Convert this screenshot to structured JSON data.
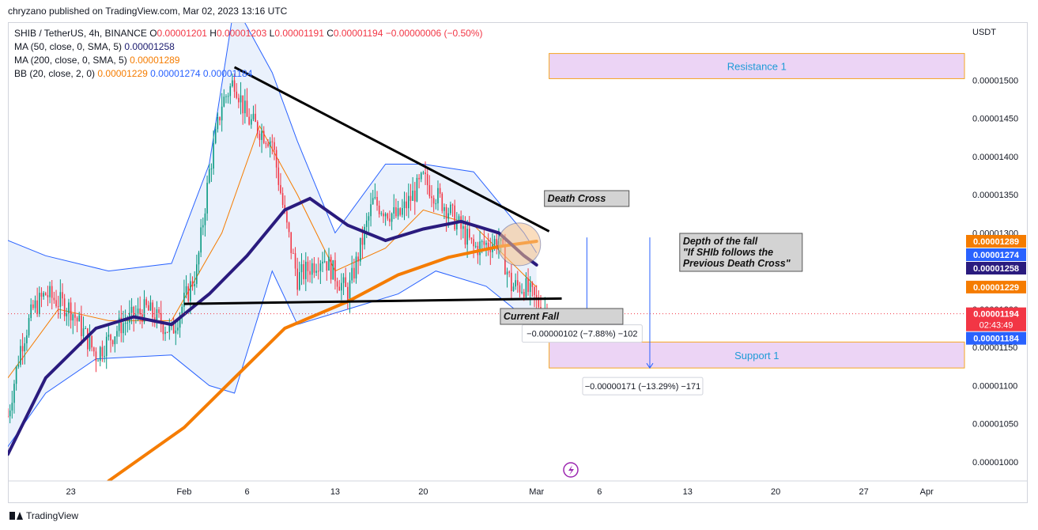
{
  "header": {
    "published": "chryzano published on TradingView.com, Mar 02, 2023 13:16 UTC"
  },
  "legend": {
    "symbol": "SHIB / TetherUS, 4h, BINANCE",
    "ohlc": [
      {
        "k": "O",
        "v": "0.00001201"
      },
      {
        "k": "H",
        "v": "0.00001203"
      },
      {
        "k": "L",
        "v": "0.00001191"
      },
      {
        "k": "C",
        "v": "0.00001194"
      }
    ],
    "change": "−0.00000006 (−0.50%)",
    "ma50_label": "MA (50, close, 0, SMA, 5)",
    "ma50_value": "0.00001258",
    "ma200_label": "MA (200, close, 0, SMA, 5)",
    "ma200_value": "0.00001289",
    "bb_label": "BB (20, close, 2, 0)",
    "bb_basis": "0.00001229",
    "bb_upper": "0.00001274",
    "bb_lower": "0.00001184"
  },
  "footer": {
    "brand": "TradingView"
  },
  "colors": {
    "up": "#089981",
    "down": "#f23645",
    "ma50": "#2a1b7e",
    "ma200": "#f57c00",
    "bb_band": "#2962ff",
    "bb_basis": "#f57c00",
    "bb_fill": "#e3ecfb",
    "zone": "#ecd4f5",
    "zone_border": "#f5a623",
    "zone_text": "#1e9bd7",
    "trendline": "#000000",
    "price_line": "#f23645"
  },
  "chart_data": {
    "type": "candlestick",
    "title": "SHIB / TetherUS, 4h, BINANCE",
    "y_unit": "USDT",
    "ylim": [
      9.75e-06,
      1.575e-05
    ],
    "x_ticks": [
      "23",
      "Feb",
      "6",
      "13",
      "20",
      "Mar",
      "6",
      "13",
      "20",
      "27",
      "Apr"
    ],
    "x_tick_dates": [
      "2023-01-23",
      "2023-02-01",
      "2023-02-06",
      "2023-02-13",
      "2023-02-20",
      "2023-03-01",
      "2023-03-06",
      "2023-03-13",
      "2023-03-20",
      "2023-03-27",
      "2023-04-01"
    ],
    "x_start": "2023-01-18",
    "x_end": "2023-04-04",
    "y_tick_values": [
      1e-05,
      1.05e-05,
      1.1e-05,
      1.15e-05,
      1.2e-05,
      1.25e-05,
      1.3e-05,
      1.35e-05,
      1.4e-05,
      1.45e-05,
      1.5e-05
    ],
    "y_ticks": [
      "0.00001000",
      "0.00001050",
      "0.00001100",
      "0.00001150",
      "0.00001200",
      "0.00001250",
      "0.00001300",
      "0.00001350",
      "0.00001400",
      "0.00001450",
      "0.00001500"
    ],
    "price_path": [
      {
        "d": "2023-01-18",
        "p": 1.06e-05
      },
      {
        "d": "2023-01-19",
        "p": 1.15e-05
      },
      {
        "d": "2023-01-20",
        "p": 1.2e-05
      },
      {
        "d": "2023-01-21",
        "p": 1.22e-05
      },
      {
        "d": "2023-01-23",
        "p": 1.2e-05
      },
      {
        "d": "2023-01-25",
        "p": 1.14e-05
      },
      {
        "d": "2023-01-27",
        "p": 1.18e-05
      },
      {
        "d": "2023-01-29",
        "p": 1.2e-05
      },
      {
        "d": "2023-01-31",
        "p": 1.17e-05
      },
      {
        "d": "2023-02-02",
        "p": 1.25e-05
      },
      {
        "d": "2023-02-03",
        "p": 1.38e-05
      },
      {
        "d": "2023-02-04",
        "p": 1.47e-05
      },
      {
        "d": "2023-02-05",
        "p": 1.5e-05
      },
      {
        "d": "2023-02-06",
        "p": 1.45e-05
      },
      {
        "d": "2023-02-08",
        "p": 1.42e-05
      },
      {
        "d": "2023-02-09",
        "p": 1.32e-05
      },
      {
        "d": "2023-02-10",
        "p": 1.24e-05
      },
      {
        "d": "2023-02-12",
        "p": 1.27e-05
      },
      {
        "d": "2023-02-14",
        "p": 1.22e-05
      },
      {
        "d": "2023-02-16",
        "p": 1.34e-05
      },
      {
        "d": "2023-02-18",
        "p": 1.32e-05
      },
      {
        "d": "2023-02-20",
        "p": 1.37e-05
      },
      {
        "d": "2023-02-22",
        "p": 1.33e-05
      },
      {
        "d": "2023-02-24",
        "p": 1.28e-05
      },
      {
        "d": "2023-02-26",
        "p": 1.29e-05
      },
      {
        "d": "2023-02-27",
        "p": 1.23e-05
      },
      {
        "d": "2023-02-28",
        "p": 1.23e-05
      },
      {
        "d": "2023-03-01",
        "p": 1.21e-05
      },
      {
        "d": "2023-03-02",
        "p": 1.194e-05
      }
    ],
    "ma50_path": [
      {
        "d": "2023-01-18",
        "p": 1.01e-05
      },
      {
        "d": "2023-01-21",
        "p": 1.11e-05
      },
      {
        "d": "2023-01-25",
        "p": 1.175e-05
      },
      {
        "d": "2023-01-28",
        "p": 1.19e-05
      },
      {
        "d": "2023-01-31",
        "p": 1.18e-05
      },
      {
        "d": "2023-02-03",
        "p": 1.22e-05
      },
      {
        "d": "2023-02-06",
        "p": 1.27e-05
      },
      {
        "d": "2023-02-09",
        "p": 1.33e-05
      },
      {
        "d": "2023-02-11",
        "p": 1.345e-05
      },
      {
        "d": "2023-02-14",
        "p": 1.31e-05
      },
      {
        "d": "2023-02-17",
        "p": 1.29e-05
      },
      {
        "d": "2023-02-20",
        "p": 1.305e-05
      },
      {
        "d": "2023-02-23",
        "p": 1.315e-05
      },
      {
        "d": "2023-02-26",
        "p": 1.3e-05
      },
      {
        "d": "2023-02-28",
        "p": 1.27e-05
      },
      {
        "d": "2023-03-01",
        "p": 1.258e-05
      }
    ],
    "ma200_path": [
      {
        "d": "2023-01-26",
        "p": 9.75e-06
      },
      {
        "d": "2023-02-01",
        "p": 1.045e-05
      },
      {
        "d": "2023-02-05",
        "p": 1.11e-05
      },
      {
        "d": "2023-02-09",
        "p": 1.175e-05
      },
      {
        "d": "2023-02-14",
        "p": 1.21e-05
      },
      {
        "d": "2023-02-18",
        "p": 1.245e-05
      },
      {
        "d": "2023-02-22",
        "p": 1.268e-05
      },
      {
        "d": "2023-02-26",
        "p": 1.282e-05
      },
      {
        "d": "2023-03-01",
        "p": 1.289e-05
      }
    ],
    "bb_basis_path": [
      {
        "d": "2023-01-18",
        "p": 1.11e-05
      },
      {
        "d": "2023-01-22",
        "p": 1.2e-05
      },
      {
        "d": "2023-01-26",
        "p": 1.185e-05
      },
      {
        "d": "2023-01-31",
        "p": 1.185e-05
      },
      {
        "d": "2023-02-04",
        "p": 1.3e-05
      },
      {
        "d": "2023-02-07",
        "p": 1.44e-05
      },
      {
        "d": "2023-02-10",
        "p": 1.35e-05
      },
      {
        "d": "2023-02-13",
        "p": 1.25e-05
      },
      {
        "d": "2023-02-17",
        "p": 1.28e-05
      },
      {
        "d": "2023-02-20",
        "p": 1.33e-05
      },
      {
        "d": "2023-02-24",
        "p": 1.31e-05
      },
      {
        "d": "2023-02-28",
        "p": 1.245e-05
      },
      {
        "d": "2023-03-01",
        "p": 1.229e-05
      }
    ],
    "bb_upper_path": [
      {
        "d": "2023-01-18",
        "p": 1.29e-05
      },
      {
        "d": "2023-01-21",
        "p": 1.27e-05
      },
      {
        "d": "2023-01-26",
        "p": 1.25e-05
      },
      {
        "d": "2023-01-31",
        "p": 1.26e-05
      },
      {
        "d": "2023-02-03",
        "p": 1.39e-05
      },
      {
        "d": "2023-02-05",
        "p": 1.6e-05
      },
      {
        "d": "2023-02-08",
        "p": 1.51e-05
      },
      {
        "d": "2023-02-10",
        "p": 1.42e-05
      },
      {
        "d": "2023-02-13",
        "p": 1.3e-05
      },
      {
        "d": "2023-02-17",
        "p": 1.39e-05
      },
      {
        "d": "2023-02-20",
        "p": 1.39e-05
      },
      {
        "d": "2023-02-24",
        "p": 1.38e-05
      },
      {
        "d": "2023-02-28",
        "p": 1.3e-05
      },
      {
        "d": "2023-03-01",
        "p": 1.274e-05
      }
    ],
    "bb_lower_path": [
      {
        "d": "2023-01-18",
        "p": 1.02e-05
      },
      {
        "d": "2023-01-21",
        "p": 1.09e-05
      },
      {
        "d": "2023-01-25",
        "p": 1.135e-05
      },
      {
        "d": "2023-01-31",
        "p": 1.14e-05
      },
      {
        "d": "2023-02-03",
        "p": 1.1e-05
      },
      {
        "d": "2023-02-05",
        "p": 1.09e-05
      },
      {
        "d": "2023-02-08",
        "p": 1.25e-05
      },
      {
        "d": "2023-02-10",
        "p": 1.18e-05
      },
      {
        "d": "2023-02-14",
        "p": 1.2e-05
      },
      {
        "d": "2023-02-18",
        "p": 1.22e-05
      },
      {
        "d": "2023-02-21",
        "p": 1.25e-05
      },
      {
        "d": "2023-02-25",
        "p": 1.23e-05
      },
      {
        "d": "2023-02-28",
        "p": 1.19e-05
      },
      {
        "d": "2023-03-01",
        "p": 1.184e-05
      }
    ],
    "trendlines": [
      {
        "name": "upper-trendline",
        "from": {
          "d": "2023-02-05",
          "p": 1.517e-05
        },
        "to": {
          "d": "2023-03-02",
          "p": 1.302e-05
        }
      },
      {
        "name": "lower-trendline",
        "from": {
          "d": "2023-02-01",
          "p": 1.207e-05
        },
        "to": {
          "d": "2023-03-03",
          "p": 1.214e-05
        }
      }
    ],
    "zones": [
      {
        "name": "resistance-zone",
        "label": "Resistance 1",
        "from": "2023-03-02",
        "to": "2023-04-04",
        "top": 1.535e-05,
        "bottom": 1.502e-05
      },
      {
        "name": "support-zone",
        "label": "Support 1",
        "from": "2023-03-02",
        "to": "2023-04-04",
        "top": 1.157e-05,
        "bottom": 1.123e-05
      }
    ],
    "annotations": [
      {
        "name": "death-cross-label",
        "text": "Death Cross"
      },
      {
        "name": "current-fall-label",
        "text": "Current Fall"
      },
      {
        "name": "depth-of-fall-label",
        "lines": [
          "Depth of the fall",
          "\"If SHIb follows the",
          "Previous Death Cross\""
        ]
      }
    ],
    "measures": [
      {
        "name": "current-fall-measure",
        "text": "−0.00000102 (−7.88%) −102",
        "date": "2023-03-05",
        "from": 1.294e-05,
        "to": 1.192e-05
      },
      {
        "name": "depth-measure",
        "text": "−0.00000171 (−13.29%) −171",
        "date": "2023-03-10",
        "from": 1.294e-05,
        "to": 1.123e-05
      }
    ],
    "axis_labels": [
      {
        "text": "0.00001289",
        "value": 1.289e-05,
        "bg": "#f57c00",
        "fg": "#ffffff"
      },
      {
        "text": "0.00001274",
        "value": 1.274e-05,
        "bg": "#2962ff",
        "fg": "#ffffff"
      },
      {
        "text": "0.00001258",
        "value": 1.258e-05,
        "bg": "#2a1b7e",
        "fg": "#ffffff"
      },
      {
        "text": "0.00001229",
        "value": 1.229e-05,
        "bg": "#f57c00",
        "fg": "#ffffff"
      },
      {
        "text": "0.00001194",
        "value": 1.194e-05,
        "bg": "#f23645",
        "fg": "#ffffff",
        "sub": "02:43:49"
      },
      {
        "text": "0.00001184",
        "value": 1.184e-05,
        "bg": "#2962ff",
        "fg": "#ffffff"
      }
    ],
    "last_price": 1.194e-05
  }
}
